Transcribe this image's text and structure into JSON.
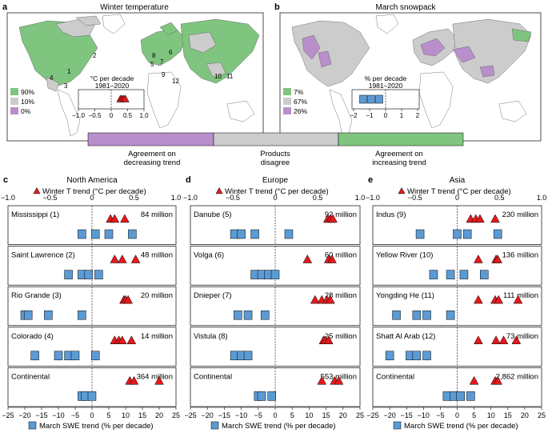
{
  "maps": [
    {
      "letter": "a",
      "title": "Winter temperature",
      "legend": [
        {
          "label": "90%",
          "color": "#7fc47f"
        },
        {
          "label": "10%",
          "color": "#cccccc"
        },
        {
          "label": "0%",
          "color": "#b98fcb"
        }
      ],
      "inset_title_1": "°C per decade",
      "inset_title_2": "1981–2020",
      "inset_ticks": [
        "−1.0",
        "−0.5",
        "0",
        "0.5",
        "1.0"
      ],
      "inset_range": [
        -1,
        1
      ],
      "inset_values": [
        0.28,
        0.33,
        0.38,
        0.43
      ],
      "region_numbers": [
        "1",
        "2",
        "3",
        "4",
        "5",
        "6",
        "7",
        "8",
        "9",
        "10",
        "11",
        "12"
      ]
    },
    {
      "letter": "b",
      "title": "March snowpack",
      "legend": [
        {
          "label": "7%",
          "color": "#7fc47f"
        },
        {
          "label": "67%",
          "color": "#cccccc"
        },
        {
          "label": "26%",
          "color": "#b98fcb"
        }
      ],
      "inset_title_1": "% per decade",
      "inset_title_2": "1981–2020",
      "inset_ticks": [
        "−2",
        "−1",
        "0",
        "1",
        "2"
      ],
      "inset_range": [
        -2,
        2
      ],
      "inset_values": [
        -1.4,
        -0.9,
        -0.4
      ]
    }
  ],
  "colorbar": {
    "left_label_1": "Agreement on",
    "left_label_2": "decreasing trend",
    "mid_label_1": "Products",
    "mid_label_2": "disagree",
    "right_label_1": "Agreement on",
    "right_label_2": "increasing trend",
    "colors": [
      "#b98fcb",
      "#cccccc",
      "#7fc47f"
    ]
  },
  "chart_data": [
    {
      "type": "scatter",
      "letter": "c",
      "title": "North America",
      "top_axis_label": "Winter T trend (°C per decade)",
      "top_ticks": [
        "−1.0",
        "−0.5",
        "0",
        "0.5",
        "1.0"
      ],
      "top_range": [
        -1,
        1
      ],
      "bottom_axis_label": "March SWE trend (% per decade)",
      "bottom_ticks": [
        "−25",
        "−20",
        "−15",
        "−10",
        "−5",
        "0",
        "5",
        "10",
        "15",
        "20",
        "25"
      ],
      "bottom_range": [
        -25,
        25
      ],
      "basins": [
        {
          "name": "Mississippi (1)",
          "population": "84 million",
          "winter_t": [
            0.22,
            0.27,
            0.39
          ],
          "swe": [
            -3,
            1,
            5,
            12
          ]
        },
        {
          "name": "Saint Lawrence (2)",
          "population": "48 million",
          "winter_t": [
            0.27,
            0.36,
            0.52
          ],
          "swe": [
            -7,
            -3,
            -1,
            2
          ]
        },
        {
          "name": "Rio Grande (3)",
          "population": "20 million",
          "winter_t": [
            0.38,
            0.4,
            0.43
          ],
          "swe": [
            -20,
            -19,
            -13,
            -3
          ]
        },
        {
          "name": "Colorado (4)",
          "population": "14 million",
          "winter_t": [
            0.27,
            0.32,
            0.36,
            0.47
          ],
          "swe": [
            -17,
            -10,
            -7,
            -5,
            1
          ]
        },
        {
          "name": "Continental",
          "population": "364 million",
          "winter_t": [
            0.45,
            0.5,
            0.8
          ],
          "swe": [
            -3,
            -2,
            0
          ]
        }
      ]
    },
    {
      "type": "scatter",
      "letter": "d",
      "title": "Europe",
      "top_axis_label": "Winter T trend (°C per decade)",
      "top_ticks": [
        "−1.0",
        "−0.5",
        "0",
        "0.5",
        "1.0"
      ],
      "top_range": [
        -1,
        1
      ],
      "bottom_axis_label": "March SWE trend (% per decade)",
      "bottom_ticks": [
        "−25",
        "−20",
        "−15",
        "−10",
        "−5",
        "0",
        "5",
        "10",
        "15",
        "20",
        "25"
      ],
      "bottom_range": [
        -25,
        25
      ],
      "basins": [
        {
          "name": "Danube (5)",
          "population": "92 million",
          "winter_t": [
            0.62,
            0.65,
            0.68
          ],
          "swe": [
            -12,
            -10,
            -6,
            4
          ]
        },
        {
          "name": "Volga (6)",
          "population": "60 million",
          "winter_t": [
            0.38,
            0.63,
            0.67
          ],
          "swe": [
            -6,
            -4,
            -2,
            0
          ]
        },
        {
          "name": "Dnieper (7)",
          "population": "28 million",
          "winter_t": [
            0.47,
            0.55,
            0.61,
            0.65
          ],
          "swe": [
            -11,
            -8,
            -3
          ]
        },
        {
          "name": "Vistula (8)",
          "population": "25 million",
          "winter_t": [
            0.57,
            0.59,
            0.63
          ],
          "swe": [
            -12,
            -10,
            -8
          ]
        },
        {
          "name": "Continental",
          "population": "553 million",
          "winter_t": [
            0.55,
            0.7,
            0.75
          ],
          "swe": [
            -5,
            -4,
            -1
          ]
        }
      ]
    },
    {
      "type": "scatter",
      "letter": "e",
      "title": "Asia",
      "top_axis_label": "Winter T trend (°C per decade)",
      "top_ticks": [
        "−1.0",
        "−0.5",
        "0",
        "0.5",
        "1.0"
      ],
      "top_range": [
        -1,
        1
      ],
      "bottom_axis_label": "March SWE trend (% per decade)",
      "bottom_ticks": [
        "−25",
        "−20",
        "−15",
        "−10",
        "−5",
        "0",
        "5",
        "10",
        "15",
        "20",
        "25"
      ],
      "bottom_range": [
        -25,
        25
      ],
      "basins": [
        {
          "name": "Indus (9)",
          "population": "230 million",
          "winter_t": [
            0.16,
            0.22,
            0.27,
            0.45
          ],
          "swe": [
            -11,
            0,
            3,
            12
          ]
        },
        {
          "name": "Yellow River (10)",
          "population": "136 million",
          "winter_t": [
            0.25,
            0.46,
            0.48
          ],
          "swe": [
            -7,
            -2,
            2,
            8
          ]
        },
        {
          "name": "Yongding He (11)",
          "population": "111 million",
          "winter_t": [
            0.25,
            0.45,
            0.49,
            0.72
          ],
          "swe": [
            -18,
            -12,
            -9,
            -2
          ]
        },
        {
          "name": "Shatt Al Arab (12)",
          "population": "73 million",
          "winter_t": [
            0.25,
            0.46,
            0.55,
            0.7
          ],
          "swe": [
            -20,
            -14,
            -12,
            -9
          ]
        },
        {
          "name": "Continental",
          "population": "2,862 million",
          "winter_t": [
            0.2,
            0.45,
            0.48
          ],
          "swe": [
            -3,
            -1,
            1,
            4
          ]
        }
      ]
    }
  ]
}
